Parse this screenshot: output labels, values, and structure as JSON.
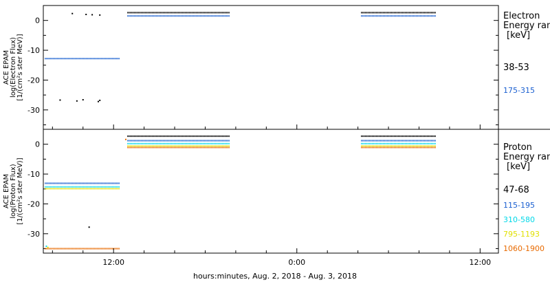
{
  "x_axis": {
    "label": "hours:minutes, Aug.  2, 2018 - Aug.  3, 2018",
    "tick_labels": [
      "12:00",
      "0:00",
      "12:00"
    ]
  },
  "panels": [
    {
      "id": "electron",
      "ylabel_lines": [
        "ACE EPAM",
        "log(Electron Flux)",
        "[1/(cm²s ster MeV)]"
      ],
      "legend_lines": [
        "Electron",
        "Energy ranges",
        "[keV]"
      ],
      "channels": [
        {
          "label": "38-53",
          "color": "#000000"
        },
        {
          "label": "175-315",
          "color": "#1a5fd0"
        }
      ]
    },
    {
      "id": "proton",
      "ylabel_lines": [
        "ACE EPAM",
        "log(Proton Flux)",
        "[1/(cm²s ster MeV)]"
      ],
      "legend_lines": [
        "Proton",
        "Energy ranges",
        "[keV]"
      ],
      "channels": [
        {
          "label": "47-68",
          "color": "#000000"
        },
        {
          "label": "115-195",
          "color": "#1a5fd0"
        },
        {
          "label": "310-580",
          "color": "#00d8e8"
        },
        {
          "label": "795-1193",
          "color": "#e0e000"
        },
        {
          "label": "1060-1900",
          "color": "#e86a00"
        }
      ]
    }
  ],
  "chart_data": [
    {
      "type": "scatter",
      "title": "",
      "xlabel": "hours:minutes, Aug.  2, 2018 - Aug.  3, 2018",
      "ylabel": "ACE EPAM log(Electron Flux) [1/(cm²s ster MeV)]",
      "x_unit": "hours since 2018-08-02 00:00",
      "xlim": [
        7.4,
        37.2
      ],
      "ylim": [
        -36.5,
        5
      ],
      "yticks": [
        0,
        -10,
        -20,
        -30
      ],
      "segments": [
        {
          "series": "38-53",
          "x": [
            12.9,
            19.6
          ],
          "y": 2.6
        },
        {
          "series": "175-315",
          "x": [
            12.9,
            19.6
          ],
          "y": 1.5
        },
        {
          "series": "38-53",
          "x": [
            28.2,
            33.1
          ],
          "y": 2.6
        },
        {
          "series": "175-315",
          "x": [
            28.2,
            33.1
          ],
          "y": 1.5
        },
        {
          "series": "175-315",
          "x": [
            7.5,
            12.4
          ],
          "y": -12.8
        }
      ],
      "points": [
        {
          "series": "38-53",
          "x": 9.3,
          "y": 2.3
        },
        {
          "series": "38-53",
          "x": 10.2,
          "y": 2.0
        },
        {
          "series": "38-53",
          "x": 10.6,
          "y": 1.9
        },
        {
          "series": "38-53",
          "x": 11.1,
          "y": 1.8
        },
        {
          "series": "38-53",
          "x": 8.5,
          "y": -26.7
        },
        {
          "series": "38-53",
          "x": 9.6,
          "y": -27.0
        },
        {
          "series": "38-53",
          "x": 10.0,
          "y": -26.6
        },
        {
          "series": "38-53",
          "x": 11.0,
          "y": -27.2
        },
        {
          "series": "38-53",
          "x": 11.1,
          "y": -26.8
        }
      ]
    },
    {
      "type": "scatter",
      "title": "",
      "xlabel": "hours:minutes, Aug.  2, 2018 - Aug.  3, 2018",
      "ylabel": "ACE EPAM log(Proton Flux) [1/(cm²s ster MeV)]",
      "x_unit": "hours since 2018-08-02 00:00",
      "xlim": [
        7.4,
        37.2
      ],
      "ylim": [
        -36.5,
        5
      ],
      "yticks": [
        0,
        -10,
        -20,
        -30
      ],
      "segments": [
        {
          "series": "47-68",
          "x": [
            12.9,
            19.6
          ],
          "y": 2.7
        },
        {
          "series": "115-195",
          "x": [
            12.9,
            19.6
          ],
          "y": 1.2
        },
        {
          "series": "310-580",
          "x": [
            12.9,
            19.6
          ],
          "y": 0.2
        },
        {
          "series": "795-1193",
          "x": [
            12.9,
            19.6
          ],
          "y": -0.6
        },
        {
          "series": "1060-1900",
          "x": [
            12.9,
            19.6
          ],
          "y": -1.1
        },
        {
          "series": "47-68",
          "x": [
            28.2,
            33.1
          ],
          "y": 2.7
        },
        {
          "series": "115-195",
          "x": [
            28.2,
            33.1
          ],
          "y": 1.2
        },
        {
          "series": "310-580",
          "x": [
            28.2,
            33.1
          ],
          "y": 0.2
        },
        {
          "series": "795-1193",
          "x": [
            28.2,
            33.1
          ],
          "y": -0.6
        },
        {
          "series": "1060-1900",
          "x": [
            28.2,
            33.1
          ],
          "y": -1.1
        },
        {
          "series": "115-195",
          "x": [
            7.5,
            12.4
          ],
          "y": -13.1
        },
        {
          "series": "310-580",
          "x": [
            7.5,
            12.4
          ],
          "y": -14.3
        },
        {
          "series": "795-1193",
          "x": [
            7.5,
            12.4
          ],
          "y": -14.9
        },
        {
          "series": "1060-1900",
          "x": [
            7.5,
            12.4
          ],
          "y": -35.0
        }
      ],
      "points": [
        {
          "series": "1060-1900",
          "x": 12.8,
          "y": 1.6
        },
        {
          "series": "47-68",
          "x": 10.4,
          "y": -27.8
        },
        {
          "series": "310-580",
          "x": 7.6,
          "y": -34.2
        },
        {
          "series": "795-1193",
          "x": 7.7,
          "y": -34.6
        }
      ]
    }
  ]
}
